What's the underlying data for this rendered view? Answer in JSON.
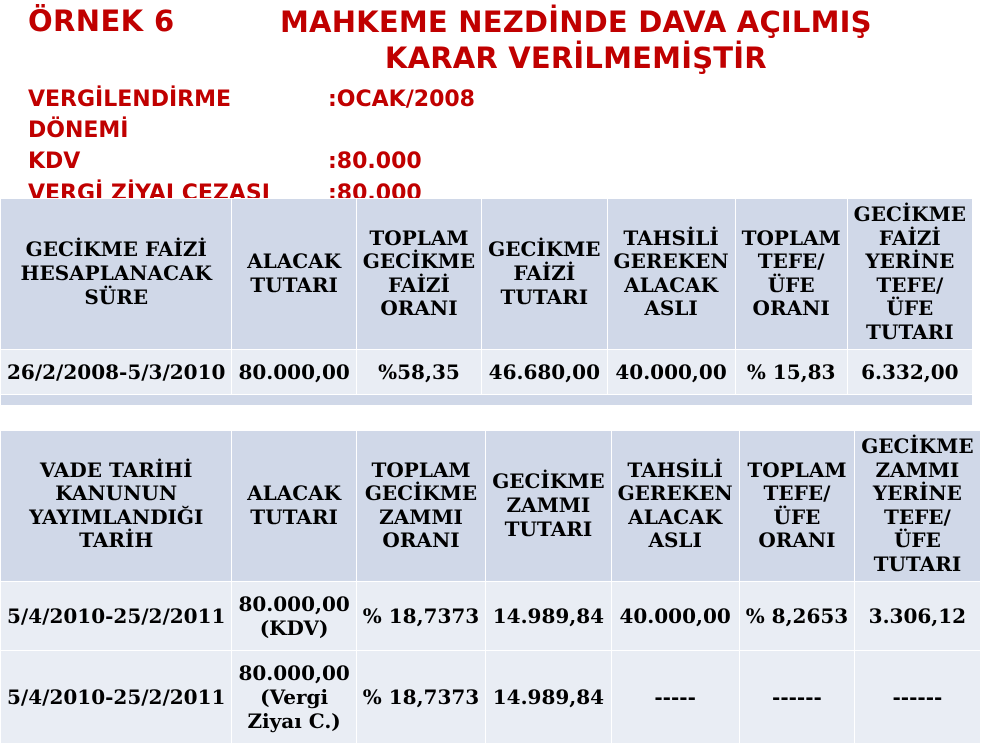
{
  "heading": {
    "ornek": "ÖRNEK 6",
    "title_l1": "MAHKEME NEZDİNDE DAVA AÇILMIŞ",
    "title_l2": "KARAR VERİLMEMİŞTİR"
  },
  "meta": {
    "row1_label": "VERGİLENDİRME DÖNEMİ",
    "row1_value": ":OCAK/2008",
    "row2_label": "KDV",
    "row2_value": ":80.000",
    "row3_label": "VERGİ ZİYAI CEZASI",
    "row3_value": ":80.000"
  },
  "table1": {
    "headers": {
      "h0": "GECİKME FAİZİ HESAPLANACAK SÜRE",
      "h1": "ALACAK TUTARI",
      "h2": "TOPLAM GECİKME FAİZİ ORANI",
      "h3": "GECİKME FAİZİ TUTARI",
      "h4": "TAHSİLİ GEREKEN ALACAK ASLI",
      "h5": "TOPLAM TEFE/ÜFE ORANI",
      "h6": "GECİKME FAİZİ YERİNE TEFE/ÜFE TUTARI"
    },
    "row": {
      "c0": "26/2/2008-5/3/2010",
      "c1": "80.000,00",
      "c2": "%58,35",
      "c3": "46.680,00",
      "c4": "40.000,00",
      "c5": "% 15,83",
      "c6": "6.332,00"
    }
  },
  "table2": {
    "headers": {
      "h0": "VADE TARİHİ KANUNUN YAYIMLANDIĞI TARİH",
      "h1": "ALACAK TUTARI",
      "h2": "TOPLAM GECİKME ZAMMI ORANI",
      "h3": "GECİKME ZAMMI TUTARI",
      "h4": "TAHSİLİ GEREKEN ALACAK ASLI",
      "h5": "TOPLAM TEFE/ÜFE ORANI",
      "h6": "GECİKME ZAMMI YERİNE TEFE/ÜFE TUTARI"
    },
    "rows": {
      "r0": {
        "c0": "5/4/2010-25/2/2011",
        "c1_l1": "80.000,00",
        "c1_l2": "(KDV)",
        "c2": "% 18,7373",
        "c3": "14.989,84",
        "c4": "40.000,00",
        "c5": "% 8,2653",
        "c6": "3.306,12"
      },
      "r1": {
        "c0": "5/4/2010-25/2/2011",
        "c1_l1": "80.000,00",
        "c1_l2": "(Vergi",
        "c1_l3": "Ziyaı C.)",
        "c2": "% 18,7373",
        "c3": "14.989,84",
        "c4": "-----",
        "c5": "------",
        "c6": "------"
      }
    }
  },
  "colors": {
    "accent": "#c00000",
    "header_bg": "#d0d8e8",
    "row_bg": "#e9edf4",
    "border": "#ffffff"
  }
}
